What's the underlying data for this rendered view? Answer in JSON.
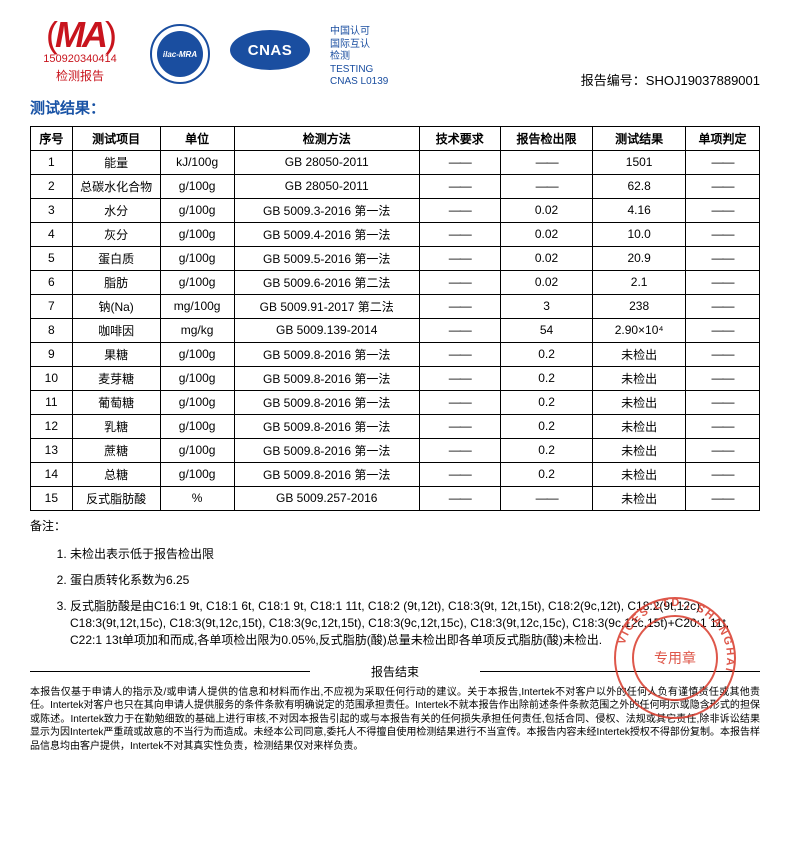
{
  "header": {
    "cma_cert_no": "150920340414",
    "cma_cert_label": "检测报告",
    "ilac_text": "ilac-MRA",
    "cnas_label": "CNAS",
    "cnas_text_lines": [
      "中国认可",
      "国际互认",
      "检测",
      "TESTING",
      "CNAS L0139"
    ],
    "report_no_label": "报告编号：",
    "report_no": "SHOJ19037889001"
  },
  "section_title": "测试结果：",
  "table": {
    "columns": [
      "序号",
      "测试项目",
      "单位",
      "检测方法",
      "技术要求",
      "报告检出限",
      "测试结果",
      "单项判定"
    ],
    "col_widths": [
      "36px",
      "76px",
      "64px",
      "160px",
      "70px",
      "80px",
      "80px",
      "64px"
    ],
    "dash": "——",
    "rows": [
      {
        "n": "1",
        "item": "能量",
        "unit": "kJ/100g",
        "method": "GB 28050-2011",
        "req": "——",
        "loq": "——",
        "result": "1501",
        "judge": "——"
      },
      {
        "n": "2",
        "item": "总碳水化合物",
        "unit": "g/100g",
        "method": "GB 28050-2011",
        "req": "——",
        "loq": "——",
        "result": "62.8",
        "judge": "——"
      },
      {
        "n": "3",
        "item": "水分",
        "unit": "g/100g",
        "method": "GB 5009.3-2016 第一法",
        "req": "——",
        "loq": "0.02",
        "result": "4.16",
        "judge": "——"
      },
      {
        "n": "4",
        "item": "灰分",
        "unit": "g/100g",
        "method": "GB 5009.4-2016 第一法",
        "req": "——",
        "loq": "0.02",
        "result": "10.0",
        "judge": "——"
      },
      {
        "n": "5",
        "item": "蛋白质",
        "unit": "g/100g",
        "method": "GB 5009.5-2016 第一法",
        "req": "——",
        "loq": "0.02",
        "result": "20.9",
        "judge": "——"
      },
      {
        "n": "6",
        "item": "脂肪",
        "unit": "g/100g",
        "method": "GB 5009.6-2016 第二法",
        "req": "——",
        "loq": "0.02",
        "result": "2.1",
        "judge": "——"
      },
      {
        "n": "7",
        "item": "钠(Na)",
        "unit": "mg/100g",
        "method": "GB 5009.91-2017 第二法",
        "req": "——",
        "loq": "3",
        "result": "238",
        "judge": "——"
      },
      {
        "n": "8",
        "item": "咖啡因",
        "unit": "mg/kg",
        "method": "GB 5009.139-2014",
        "req": "——",
        "loq": "54",
        "result": "2.90×10⁴",
        "judge": "——"
      },
      {
        "n": "9",
        "item": "果糖",
        "unit": "g/100g",
        "method": "GB 5009.8-2016 第一法",
        "req": "——",
        "loq": "0.2",
        "result": "未检出",
        "judge": "——"
      },
      {
        "n": "10",
        "item": "麦芽糖",
        "unit": "g/100g",
        "method": "GB 5009.8-2016 第一法",
        "req": "——",
        "loq": "0.2",
        "result": "未检出",
        "judge": "——"
      },
      {
        "n": "11",
        "item": "葡萄糖",
        "unit": "g/100g",
        "method": "GB 5009.8-2016 第一法",
        "req": "——",
        "loq": "0.2",
        "result": "未检出",
        "judge": "——"
      },
      {
        "n": "12",
        "item": "乳糖",
        "unit": "g/100g",
        "method": "GB 5009.8-2016 第一法",
        "req": "——",
        "loq": "0.2",
        "result": "未检出",
        "judge": "——"
      },
      {
        "n": "13",
        "item": "蔗糖",
        "unit": "g/100g",
        "method": "GB 5009.8-2016 第一法",
        "req": "——",
        "loq": "0.2",
        "result": "未检出",
        "judge": "——"
      },
      {
        "n": "14",
        "item": "总糖",
        "unit": "g/100g",
        "method": "GB 5009.8-2016 第一法",
        "req": "——",
        "loq": "0.2",
        "result": "未检出",
        "judge": "——"
      },
      {
        "n": "15",
        "item": "反式脂肪酸",
        "unit": "%",
        "method": "GB 5009.257-2016",
        "req": "——",
        "loq": "——",
        "result": "未检出",
        "judge": "——"
      }
    ]
  },
  "notes_label": "备注：",
  "notes": [
    "未检出表示低于报告检出限",
    "蛋白质转化系数为6.25",
    "反式脂肪酸是由C16:1 9t, C18:1 6t, C18:1 9t, C18:1 11t, C18:2 (9t,12t), C18:3(9t, 12t,15t), C18:2(9c,12t), C18:2(9t,12c), C18:3(9t,12t,15c), C18:3(9t,12c,15t), C18:3(9c,12t,15t), C18:3(9c,12t,15c), C18:3(9t,12c,15c), C18:3(9c,12c,15t)+C20:1 11t, C22:1 13t单项加和而成,各单项检出限为0.05%,反式脂肪(酸)总量未检出即各单项反式脂肪(酸)未检出."
  ],
  "end_label": "报告结束",
  "disclaimer": "本报告仅基于申请人的指示及/或申请人提供的信息和材料而作出,不应视为采取任何行动的建议。关于本报告,Intertek不对客户以外的任何人负有谨慎责任或其他责任。Intertek对客户也只在其向申请人提供服务的条件条款有明确说定的范围承担责任。Intertek不就本报告作出除前述条件条款范围之外的任何明示或隐含形式的担保或陈述。Intertek致力于在勤勉细致的基础上进行审核,不对因本报告引起的或与本报告有关的任何损失承担任何责任,包括合同、侵权、法规或其它责任,除非诉讼结果显示为因Intertek严重疏或故意的不当行为而造成。未经本公司同意,委托人不得擅自使用检测结果进行不当宣传。本报告内容未经Intertek授权不得部份复制。本报告样品信息均由客户提供，Intertek不对其真实性负责，检测结果仅对来样负责。",
  "stamp_arc_text": "VICES LTD., SHANGHAI",
  "stamp_center_text": "专用章",
  "colors": {
    "cma_red": "#c8141d",
    "logo_blue": "#1a4ea0",
    "title_blue": "#1852a5",
    "stamp_red": "#d93a2b"
  }
}
